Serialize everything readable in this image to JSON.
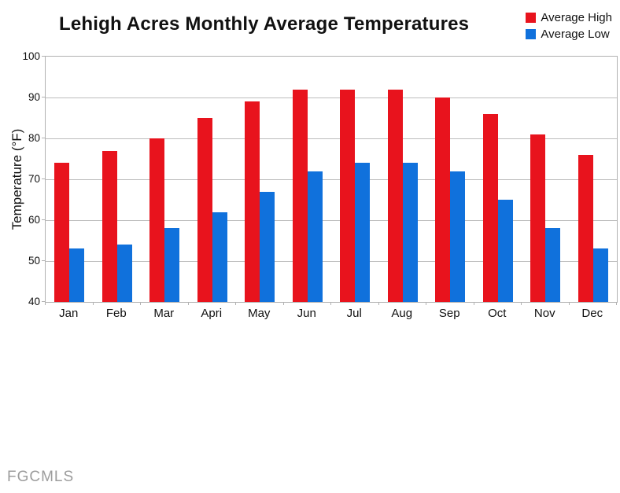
{
  "title": "Lehigh Acres Monthly Average Temperatures",
  "watermark": "FGCMLS",
  "colors": {
    "high": "#e8131d",
    "low": "#1071dc",
    "grid": "#bdbdbd",
    "axis": "#b2b2b2"
  },
  "chart_data": {
    "type": "bar",
    "title": "Lehigh Acres Monthly Average Temperatures",
    "categories": [
      "Jan",
      "Feb",
      "Mar",
      "Apri",
      "May",
      "Jun",
      "Jul",
      "Aug",
      "Sep",
      "Oct",
      "Nov",
      "Dec"
    ],
    "series": [
      {
        "name": "Average High",
        "color": "#e8131d",
        "values": [
          74,
          77,
          80,
          85,
          89,
          92,
          92,
          92,
          90,
          86,
          81,
          76
        ]
      },
      {
        "name": "Average Low",
        "color": "#1071dc",
        "values": [
          53,
          54,
          58,
          62,
          67,
          72,
          74,
          74,
          72,
          65,
          58,
          53
        ]
      }
    ],
    "xlabel": "",
    "ylabel": "Temperature (°F)",
    "ylim": [
      40,
      100
    ],
    "yticks": [
      40,
      50,
      60,
      70,
      80,
      90,
      100
    ],
    "grid": true,
    "legend_position": "top-right"
  }
}
